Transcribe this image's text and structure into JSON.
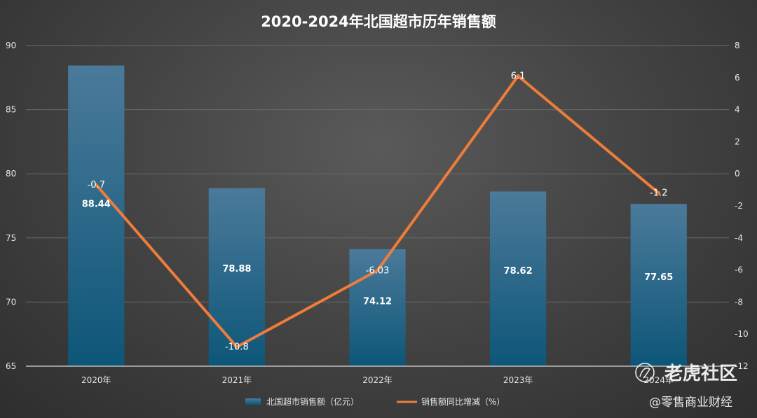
{
  "chart_data": {
    "type": "bar",
    "title": "2020-2024年北国超市历年销售额",
    "categories": [
      "2020年",
      "2021年",
      "2022年",
      "2023年",
      "2024年"
    ],
    "series": [
      {
        "name": "北国超市销售额（亿元）",
        "type": "bar",
        "axis": "left",
        "values": [
          88.44,
          78.88,
          74.12,
          78.62,
          77.65
        ],
        "labels": [
          "88.44",
          "78.88",
          "74.12",
          "78.62",
          "77.65"
        ]
      },
      {
        "name": "销售额同比增减（%）",
        "type": "line",
        "axis": "right",
        "values": [
          -0.7,
          -10.8,
          -6.03,
          6.1,
          -1.2
        ],
        "labels": [
          "-0.7",
          "-10.8",
          "-6.03",
          "6.1",
          "-1.2"
        ]
      }
    ],
    "y_left": {
      "min": 65,
      "max": 90,
      "ticks": [
        65,
        70,
        75,
        80,
        85,
        90
      ]
    },
    "y_right": {
      "min": -12,
      "max": 8,
      "ticks": [
        -12,
        -10,
        -8,
        -6,
        -4,
        -2,
        0,
        2,
        4,
        6,
        8
      ]
    },
    "grid": true,
    "legend_position": "bottom",
    "colors": {
      "bar_top": "#4b7a9a",
      "bar_bottom": "#0d5678",
      "line": "#ee7c3a"
    }
  },
  "watermark": {
    "brand": "老虎社区",
    "handle": "@零售商业财经"
  }
}
